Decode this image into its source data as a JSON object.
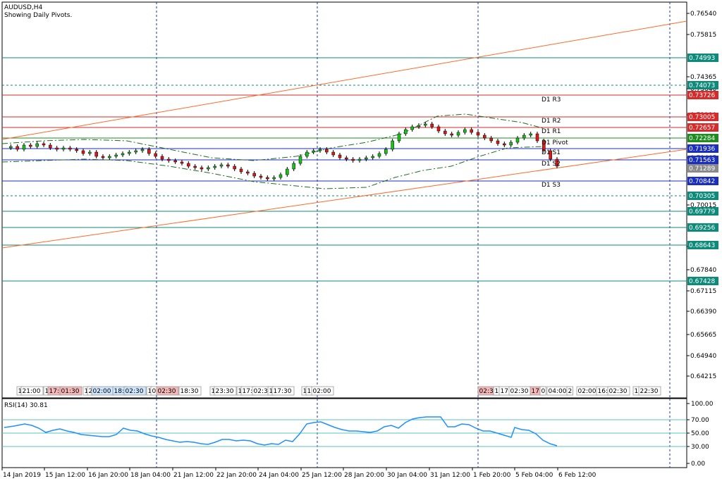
{
  "header": {
    "symbol_line": "AUDUSD,H4",
    "subtitle": "Showing Daily Pivots."
  },
  "price_axis": {
    "ticks": [
      "0.76540",
      "0.75815",
      "0.74365",
      "0.73640",
      "0.72190",
      "0.71465",
      "0.70015",
      "0.68565",
      "0.67840",
      "0.67115",
      "0.66390",
      "0.65665",
      "0.64940",
      "0.64215"
    ]
  },
  "level_boxes": [
    {
      "value": "0.74993",
      "color": "#0d8a7a"
    },
    {
      "value": "0.74073",
      "color": "#0d8a7a"
    },
    {
      "value": "0.73726",
      "color": "#d62b2b"
    },
    {
      "value": "0.73005",
      "color": "#d62b2b"
    },
    {
      "value": "0.72657",
      "color": "#d62b2b"
    },
    {
      "value": "0.72284",
      "color": "#1f8c1f"
    },
    {
      "value": "0.71936",
      "color": "#1a2fbf"
    },
    {
      "value": "0.71563",
      "color": "#1a2fbf"
    },
    {
      "value": "0.71289",
      "color": "#8a8a8a"
    },
    {
      "value": "0.70842",
      "color": "#1a2fbf"
    },
    {
      "value": "0.70305",
      "color": "#0d8a7a"
    },
    {
      "value": "0.69779",
      "color": "#0d8a7a"
    },
    {
      "value": "0.69256",
      "color": "#0d8a7a"
    },
    {
      "value": "0.68643",
      "color": "#0d8a7a"
    },
    {
      "value": "0.67428",
      "color": "#0d8a7a"
    }
  ],
  "pivot_labels": [
    "D1 R3",
    "D1 R2",
    "D1 R1",
    "D1 Pivot",
    "D1 S1",
    "D1 S2",
    "D1 S3"
  ],
  "time_markers": [
    "1",
    "21:00",
    "1",
    "17:",
    "01:30",
    "1",
    "2",
    "02:00",
    "18:",
    "02:30",
    "1",
    "0",
    "02:30",
    "18:30",
    "1",
    "23:30",
    "1",
    "17:",
    "02:30",
    "1",
    "17:30",
    "1",
    "1",
    "02:00",
    "02:30",
    "1",
    "17:",
    "02:30",
    "17:",
    "0",
    "04:00",
    "2",
    "02:00",
    "16:3",
    "02:30",
    "1",
    "22:30"
  ],
  "rsi": {
    "label": "RSI(14) 30.81",
    "ticks": [
      "100.00",
      "70.00",
      "50.00",
      "30.00",
      "0.00"
    ]
  },
  "time_axis": {
    "labels": [
      "14 Jan 2019",
      "15 Jan 12:00",
      "16 Jan 20:00",
      "18 Jan 04:00",
      "21 Jan 12:00",
      "22 Jan 20:00",
      "24 Jan 04:00",
      "25 Jan 12:00",
      "28 Jan 20:00",
      "30 Jan 04:00",
      "31 Jan 12:00",
      "1 Feb 20:00",
      "5 Feb 04:00",
      "6 Feb 12:00"
    ]
  },
  "colors": {
    "bull": "#19c419",
    "bear": "#e01818",
    "trendline": "#ff6a2a",
    "rsi_line": "#1e90ff",
    "grid": "#1a2fbf"
  }
}
